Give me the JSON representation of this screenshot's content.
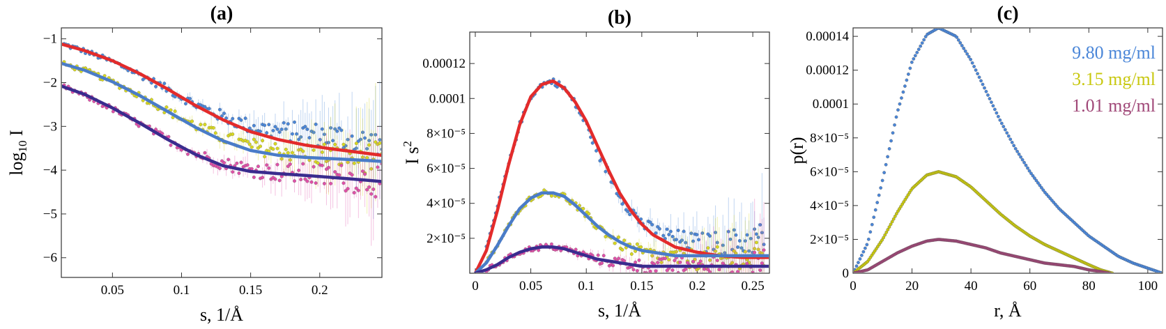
{
  "chart_data": [
    {
      "id": "a",
      "type": "scatter",
      "title": "(a)",
      "xlabel": "s, 1/Å",
      "ylabel_main": "log",
      "ylabel_sub": "10",
      "ylabel_tail": " I",
      "xlim": [
        0.013,
        0.245
      ],
      "ylim": [
        -6.45,
        -0.75
      ],
      "xticks": [
        {
          "v": 0.05,
          "label": "0.05"
        },
        {
          "v": 0.1,
          "label": "0.1"
        },
        {
          "v": 0.15,
          "label": "0.15"
        },
        {
          "v": 0.2,
          "label": "0.2"
        }
      ],
      "yticks": [
        {
          "v": -1,
          "label": "−1"
        },
        {
          "v": -2,
          "label": "−2"
        },
        {
          "v": -3,
          "label": "−3"
        },
        {
          "v": -4,
          "label": "−4"
        },
        {
          "v": -5,
          "label": "−5"
        },
        {
          "v": -6,
          "label": "−6"
        }
      ],
      "series": [
        {
          "name": "9.80 mg/ml data",
          "kind": "points",
          "color": "#4a86d8",
          "x": [
            0.015,
            0.03,
            0.05,
            0.07,
            0.09,
            0.11,
            0.13,
            0.15,
            0.17,
            0.19,
            0.21,
            0.23,
            0.245
          ],
          "y": [
            -1.13,
            -1.28,
            -1.52,
            -1.82,
            -2.15,
            -2.5,
            -2.78,
            -3.0,
            -3.1,
            -3.15,
            -3.22,
            -3.35,
            -3.45
          ]
        },
        {
          "name": "3.15 mg/ml data",
          "kind": "points",
          "color": "#d8d820",
          "x": [
            0.015,
            0.03,
            0.05,
            0.07,
            0.09,
            0.11,
            0.13,
            0.15,
            0.17,
            0.19,
            0.21,
            0.23,
            0.245
          ],
          "y": [
            -1.58,
            -1.72,
            -1.98,
            -2.3,
            -2.65,
            -2.98,
            -3.25,
            -3.45,
            -3.55,
            -3.6,
            -3.65,
            -3.7,
            -3.75
          ]
        },
        {
          "name": "1.01 mg/ml data",
          "kind": "points",
          "color": "#e050a8",
          "x": [
            0.015,
            0.03,
            0.05,
            0.07,
            0.09,
            0.11,
            0.13,
            0.15,
            0.17,
            0.19,
            0.21,
            0.23,
            0.245
          ],
          "y": [
            -2.1,
            -2.3,
            -2.6,
            -2.95,
            -3.3,
            -3.62,
            -3.85,
            -3.98,
            -4.05,
            -4.1,
            -4.15,
            -4.2,
            -4.25
          ]
        },
        {
          "name": "9.80 mg/ml fit",
          "kind": "line",
          "color": "#e32b2b",
          "x": [
            0.013,
            0.03,
            0.05,
            0.07,
            0.09,
            0.11,
            0.13,
            0.15,
            0.17,
            0.19,
            0.21,
            0.23,
            0.245
          ],
          "y": [
            -1.12,
            -1.27,
            -1.5,
            -1.8,
            -2.15,
            -2.52,
            -2.85,
            -3.12,
            -3.3,
            -3.43,
            -3.52,
            -3.6,
            -3.66
          ]
        },
        {
          "name": "3.15 mg/ml fit",
          "kind": "line",
          "color": "#4a7cc8",
          "x": [
            0.013,
            0.03,
            0.05,
            0.07,
            0.09,
            0.11,
            0.13,
            0.15,
            0.17,
            0.19,
            0.21,
            0.23,
            0.245
          ],
          "y": [
            -1.56,
            -1.72,
            -1.98,
            -2.3,
            -2.66,
            -3.02,
            -3.33,
            -3.55,
            -3.66,
            -3.71,
            -3.74,
            -3.77,
            -3.8
          ]
        },
        {
          "name": "1.01 mg/ml fit",
          "kind": "line",
          "color": "#3a2c8e",
          "x": [
            0.013,
            0.03,
            0.05,
            0.07,
            0.09,
            0.11,
            0.13,
            0.15,
            0.17,
            0.19,
            0.21,
            0.23,
            0.245
          ],
          "y": [
            -2.08,
            -2.27,
            -2.58,
            -2.93,
            -3.3,
            -3.64,
            -3.9,
            -4.03,
            -4.08,
            -4.12,
            -4.17,
            -4.22,
            -4.26
          ]
        }
      ]
    },
    {
      "id": "b",
      "type": "scatter",
      "title": "(b)",
      "xlabel": "s, 1/Å",
      "ylabel_main": "I s",
      "ylabel_sup": "2",
      "xlim": [
        -0.005,
        0.265
      ],
      "ylim": [
        0,
        0.000138
      ],
      "xticks": [
        {
          "v": 0,
          "label": "0"
        },
        {
          "v": 0.05,
          "label": "0.05"
        },
        {
          "v": 0.1,
          "label": "0.1"
        },
        {
          "v": 0.15,
          "label": "0.15"
        },
        {
          "v": 0.2,
          "label": "0.2"
        },
        {
          "v": 0.25,
          "label": "0.25"
        }
      ],
      "yticks": [
        {
          "v": 2e-05,
          "label": "2×10⁻⁵"
        },
        {
          "v": 4e-05,
          "label": "4×10⁻⁵"
        },
        {
          "v": 6e-05,
          "label": "6×10⁻⁵"
        },
        {
          "v": 8e-05,
          "label": "8×10⁻⁵"
        },
        {
          "v": 0.0001,
          "label": "0.0001"
        },
        {
          "v": 0.00012,
          "label": "0.00012"
        }
      ],
      "series": [
        {
          "name": "9.80 mg/ml data",
          "kind": "points",
          "color": "#4a86d8",
          "x": [
            0.01,
            0.02,
            0.03,
            0.04,
            0.05,
            0.06,
            0.07,
            0.08,
            0.09,
            0.1,
            0.11,
            0.12,
            0.13,
            0.14,
            0.15,
            0.16,
            0.18,
            0.2,
            0.22,
            0.24,
            0.26
          ],
          "y": [
            1.4e-05,
            3.8e-05,
            6.2e-05,
            8.5e-05,
            0.000101,
            0.000108,
            0.00011,
            0.000106,
            9.7e-05,
            8.5e-05,
            7e-05,
            5.7e-05,
            4.5e-05,
            3.6e-05,
            2.9e-05,
            2.4e-05,
            2e-05,
            1.7e-05,
            1.7e-05,
            1.8e-05,
            2.1e-05
          ]
        },
        {
          "name": "3.15 mg/ml data",
          "kind": "points",
          "color": "#d8d820",
          "x": [
            0.01,
            0.02,
            0.03,
            0.04,
            0.05,
            0.06,
            0.07,
            0.08,
            0.09,
            0.1,
            0.11,
            0.12,
            0.13,
            0.14,
            0.15,
            0.16,
            0.18,
            0.2,
            0.22,
            0.24,
            0.26
          ],
          "y": [
            6e-06,
            1.6e-05,
            2.7e-05,
            3.7e-05,
            4.3e-05,
            4.6e-05,
            4.6e-05,
            4.4e-05,
            3.9e-05,
            3.3e-05,
            2.7e-05,
            2.2e-05,
            1.7e-05,
            1.4e-05,
            1.2e-05,
            1e-05,
            9e-06,
            8e-06,
            8e-06,
            8e-06,
            9e-06
          ]
        },
        {
          "name": "1.01 mg/ml data",
          "kind": "points",
          "color": "#e050a8",
          "x": [
            0.01,
            0.02,
            0.03,
            0.04,
            0.05,
            0.06,
            0.07,
            0.08,
            0.09,
            0.1,
            0.11,
            0.12,
            0.13,
            0.14,
            0.15,
            0.16,
            0.18,
            0.2,
            0.22,
            0.24,
            0.26
          ],
          "y": [
            2e-06,
            5e-06,
            9e-06,
            1.2e-05,
            1.4e-05,
            1.5e-05,
            1.5e-05,
            1.4e-05,
            1.2e-05,
            1e-05,
            8e-06,
            7e-06,
            6e-06,
            5e-06,
            4e-06,
            4e-06,
            4e-06,
            4e-06,
            4e-06,
            4e-06,
            4e-06
          ]
        },
        {
          "name": "9.80 mg/ml fit",
          "kind": "line",
          "color": "#e32b2b",
          "x": [
            0,
            0.01,
            0.02,
            0.03,
            0.04,
            0.05,
            0.06,
            0.07,
            0.08,
            0.09,
            0.1,
            0.11,
            0.12,
            0.13,
            0.14,
            0.15,
            0.16,
            0.18,
            0.2,
            0.22,
            0.24,
            0.265
          ],
          "y": [
            0,
            1.3e-05,
            3.6e-05,
            6.2e-05,
            8.5e-05,
            0.000101,
            0.000108,
            0.00011,
            0.000106,
            9.8e-05,
            8.7e-05,
            7.3e-05,
            5.9e-05,
            4.6e-05,
            3.6e-05,
            2.8e-05,
            2.2e-05,
            1.5e-05,
            1.2e-05,
            1e-05,
            9e-06,
            9e-06
          ]
        },
        {
          "name": "3.15 mg/ml fit",
          "kind": "line",
          "color": "#4a7cc8",
          "x": [
            0,
            0.01,
            0.02,
            0.03,
            0.04,
            0.05,
            0.06,
            0.07,
            0.08,
            0.09,
            0.1,
            0.11,
            0.12,
            0.13,
            0.14,
            0.15,
            0.16,
            0.18,
            0.2,
            0.22,
            0.24,
            0.265
          ],
          "y": [
            0,
            6e-06,
            1.6e-05,
            2.7e-05,
            3.7e-05,
            4.3e-05,
            4.6e-05,
            4.6e-05,
            4.4e-05,
            3.9e-05,
            3.3e-05,
            2.7e-05,
            2.2e-05,
            1.8e-05,
            1.5e-05,
            1.3e-05,
            1.2e-05,
            1e-05,
            1e-05,
            1e-05,
            1e-05,
            1e-05
          ]
        },
        {
          "name": "1.01 mg/ml fit",
          "kind": "line",
          "color": "#3a2c8e",
          "x": [
            0,
            0.01,
            0.02,
            0.03,
            0.04,
            0.05,
            0.06,
            0.07,
            0.08,
            0.09,
            0.1,
            0.11,
            0.12,
            0.13,
            0.14,
            0.15,
            0.16,
            0.18,
            0.2,
            0.22,
            0.24,
            0.265
          ],
          "y": [
            0,
            2e-06,
            5e-06,
            9e-06,
            1.2e-05,
            1.4e-05,
            1.5e-05,
            1.5e-05,
            1.4e-05,
            1.2e-05,
            1e-05,
            8e-06,
            7e-06,
            6e-06,
            5e-06,
            4e-06,
            4e-06,
            4e-06,
            4e-06,
            4e-06,
            4e-06,
            4e-06
          ]
        }
      ]
    },
    {
      "id": "c",
      "type": "scatter",
      "title": "(c)",
      "xlabel": "r, Å",
      "ylabel_main": "p(r)",
      "xlim": [
        0,
        105
      ],
      "ylim": [
        0,
        0.000145
      ],
      "xticks": [
        {
          "v": 0,
          "label": "0"
        },
        {
          "v": 20,
          "label": "20"
        },
        {
          "v": 40,
          "label": "40"
        },
        {
          "v": 60,
          "label": "60"
        },
        {
          "v": 80,
          "label": "80"
        },
        {
          "v": 100,
          "label": "100"
        }
      ],
      "yticks": [
        {
          "v": 0,
          "label": "0"
        },
        {
          "v": 2e-05,
          "label": "2×10⁻⁵"
        },
        {
          "v": 4e-05,
          "label": "4×10⁻⁵"
        },
        {
          "v": 6e-05,
          "label": "6×10⁻⁵"
        },
        {
          "v": 8e-05,
          "label": "8×10⁻⁵"
        },
        {
          "v": 0.0001,
          "label": "0.0001"
        },
        {
          "v": 0.00012,
          "label": "0.00012"
        },
        {
          "v": 0.00014,
          "label": "0.00014"
        }
      ],
      "legend": [
        {
          "label": "9.80 mg/ml",
          "color": "#4a86d8"
        },
        {
          "label": "3.15 mg/ml",
          "color": "#c8c810"
        },
        {
          "label": "1.01 mg/ml",
          "color": "#a04878"
        }
      ],
      "series": [
        {
          "name": "9.80 mg/ml",
          "kind": "curve",
          "color": "#4a86d8",
          "x": [
            0,
            5,
            10,
            15,
            20,
            25,
            29,
            35,
            40,
            45,
            50,
            55,
            60,
            65,
            70,
            75,
            80,
            85,
            90,
            95,
            100,
            105
          ],
          "y": [
            0,
            1.8e-05,
            5.5e-05,
            9.5e-05,
            0.000125,
            0.000141,
            0.000145,
            0.00014,
            0.000126,
            0.000108,
            9e-05,
            7.4e-05,
            6e-05,
            4.8e-05,
            3.8e-05,
            3e-05,
            2.2e-05,
            1.6e-05,
            1e-05,
            6e-06,
            3e-06,
            0
          ]
        },
        {
          "name": "3.15 mg/ml",
          "kind": "curve",
          "color": "#c8c810",
          "x": [
            0,
            5,
            10,
            15,
            20,
            25,
            29,
            35,
            40,
            45,
            50,
            55,
            60,
            65,
            70,
            75,
            80,
            84,
            88
          ],
          "y": [
            0,
            7e-06,
            2e-05,
            3.6e-05,
            5e-05,
            5.8e-05,
            6e-05,
            5.7e-05,
            5.1e-05,
            4.3e-05,
            3.5e-05,
            2.8e-05,
            2.2e-05,
            1.7e-05,
            1.3e-05,
            9e-06,
            5e-06,
            2e-06,
            0
          ]
        },
        {
          "name": "1.01 mg/ml",
          "kind": "curve",
          "color": "#a04878",
          "x": [
            0,
            5,
            10,
            15,
            20,
            25,
            29,
            35,
            40,
            45,
            50,
            55,
            60,
            65,
            70,
            75,
            80,
            84,
            87
          ],
          "y": [
            0,
            2e-06,
            7e-06,
            1.2e-05,
            1.6e-05,
            1.9e-05,
            2e-05,
            1.9e-05,
            1.7e-05,
            1.5e-05,
            1.2e-05,
            1e-05,
            8e-06,
            6e-06,
            5e-06,
            4e-06,
            2e-06,
            1e-06,
            0
          ]
        }
      ]
    }
  ]
}
